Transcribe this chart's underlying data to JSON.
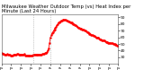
{
  "title": "Milwaukee Weather Outdoor Temp (vs) Heat Index per Minute (Last 24 Hours)",
  "line_color": "#ff0000",
  "bg_color": "#ffffff",
  "plot_bg": "#ffffff",
  "vline_color": "#999999",
  "vline_positions": [
    0.27,
    0.42
  ],
  "ylim": [
    20,
    95
  ],
  "yticks": [
    30,
    40,
    50,
    60,
    70,
    80,
    90
  ],
  "marker": ".",
  "markersize": 1.5,
  "linewidth": 0.6,
  "title_fontsize": 3.8,
  "tick_fontsize": 3.2,
  "x_data": [
    0,
    1,
    2,
    3,
    4,
    5,
    6,
    7,
    8,
    9,
    10,
    11,
    12,
    13,
    14,
    15,
    16,
    17,
    18,
    19,
    20,
    21,
    22,
    23,
    24,
    25,
    26,
    27,
    28,
    29,
    30,
    31,
    32,
    33,
    34,
    35,
    36,
    37,
    38,
    39,
    40,
    41,
    42,
    43,
    44,
    45,
    46,
    47,
    48,
    49,
    50,
    51,
    52,
    53,
    54,
    55,
    56,
    57,
    58,
    59,
    60,
    61,
    62,
    63,
    64,
    65,
    66,
    67,
    68,
    69,
    70,
    71,
    72,
    73,
    74,
    75,
    76,
    77,
    78,
    79,
    80,
    81,
    82,
    83,
    84,
    85,
    86,
    87,
    88,
    89,
    90,
    91,
    92,
    93,
    94,
    95,
    96,
    97,
    98,
    99,
    100,
    101,
    102,
    103,
    104,
    105,
    106,
    107,
    108,
    109,
    110,
    111,
    112,
    113,
    114,
    115,
    116,
    117,
    118,
    119,
    120,
    121,
    122,
    123,
    124,
    125,
    126,
    127,
    128,
    129,
    130,
    131,
    132,
    133,
    134,
    135,
    136,
    137,
    138,
    139,
    140,
    141,
    142,
    143
  ],
  "y_data": [
    36,
    35,
    35,
    35,
    34,
    34,
    34,
    35,
    34,
    34,
    34,
    33,
    33,
    33,
    33,
    34,
    34,
    34,
    34,
    35,
    35,
    34,
    34,
    34,
    34,
    34,
    34,
    34,
    35,
    33,
    33,
    33,
    33,
    33,
    32,
    32,
    32,
    32,
    33,
    34,
    34,
    34,
    34,
    34,
    34,
    34,
    34,
    34,
    34,
    34,
    35,
    35,
    35,
    36,
    36,
    37,
    38,
    40,
    44,
    52,
    60,
    63,
    66,
    68,
    70,
    72,
    74,
    76,
    78,
    80,
    82,
    83,
    84,
    85,
    85,
    86,
    86,
    86,
    86,
    86,
    85,
    85,
    84,
    84,
    83,
    83,
    82,
    81,
    80,
    80,
    79,
    78,
    77,
    76,
    75,
    74,
    73,
    73,
    73,
    72,
    72,
    71,
    70,
    70,
    69,
    68,
    67,
    66,
    65,
    65,
    64,
    63,
    63,
    62,
    62,
    61,
    60,
    60,
    59,
    59,
    58,
    57,
    57,
    56,
    56,
    55,
    55,
    54,
    53,
    53,
    53,
    52,
    52,
    52,
    51,
    51,
    51,
    50,
    50,
    50,
    49,
    49,
    48,
    47
  ],
  "xtick_positions": [
    0,
    12,
    24,
    36,
    48,
    60,
    72,
    84,
    96,
    108,
    120,
    132,
    143
  ],
  "xtick_labels": [
    "p.",
    "p.",
    "p.",
    "p.",
    "p.",
    "a.",
    "a.",
    "a.",
    "a.",
    "p.",
    "p.",
    "p.",
    "p."
  ],
  "figsize": [
    1.6,
    0.87
  ],
  "dpi": 100
}
